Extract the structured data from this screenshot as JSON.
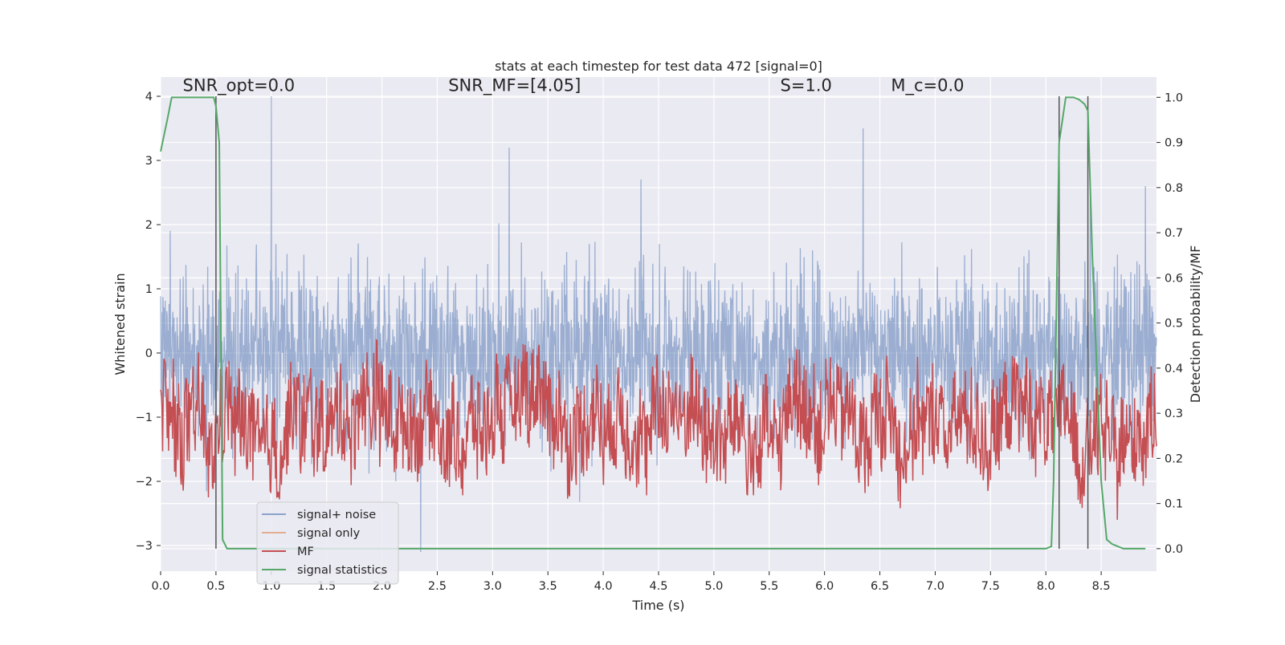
{
  "chart_data": {
    "type": "line",
    "title": "stats at each timestep for test data 472 [signal=0]",
    "xlabel": "Time (s)",
    "ylabel": "Whitened strain",
    "ylabel_right": "Detection probability/MF",
    "xlim": [
      0.0,
      9.0
    ],
    "ylim": [
      -3.4,
      4.3
    ],
    "ylim_right": [
      -0.05,
      1.045
    ],
    "x_ticks": [
      "0.0",
      "0.5",
      "1.0",
      "1.5",
      "2.0",
      "2.5",
      "3.0",
      "3.5",
      "4.0",
      "4.5",
      "5.0",
      "5.5",
      "6.0",
      "6.5",
      "7.0",
      "7.5",
      "8.0",
      "8.5"
    ],
    "x_tick_values": [
      0.0,
      0.5,
      1.0,
      1.5,
      2.0,
      2.5,
      3.0,
      3.5,
      4.0,
      4.5,
      5.0,
      5.5,
      6.0,
      6.5,
      7.0,
      7.5,
      8.0,
      8.5
    ],
    "y_ticks": [
      "−3",
      "−2",
      "−1",
      "0",
      "1",
      "2",
      "3",
      "4"
    ],
    "y_tick_values": [
      -3,
      -2,
      -1,
      0,
      1,
      2,
      3,
      4
    ],
    "y_ticks_right": [
      "0.0",
      "0.1",
      "0.2",
      "0.3",
      "0.4",
      "0.5",
      "0.6",
      "0.7",
      "0.8",
      "0.9",
      "1.0"
    ],
    "y_tick_values_right": [
      0.0,
      0.1,
      0.2,
      0.3,
      0.4,
      0.5,
      0.6,
      0.7,
      0.8,
      0.9,
      1.0
    ],
    "grid": true,
    "legend_position": "lower-left",
    "annotations": [
      {
        "text": "SNR_opt=0.0",
        "x": 0.2,
        "y": 4.08
      },
      {
        "text": "SNR_MF=[4.05]",
        "x": 2.6,
        "y": 4.08
      },
      {
        "text": "S=1.0",
        "x": 5.6,
        "y": 4.08
      },
      {
        "text": "M_c=0.0",
        "x": 6.6,
        "y": 4.08
      }
    ],
    "vertical_lines": [
      {
        "x": 0.5,
        "y_top": 4.0,
        "y_bottom": -3.05
      },
      {
        "x": 8.12,
        "y_top": 4.0,
        "y_bottom": -3.05
      },
      {
        "x": 8.38,
        "y_top": 4.0,
        "y_bottom": -3.05
      }
    ],
    "series": [
      {
        "name": "signal+ noise",
        "color": "#4c72b0",
        "axis": "left",
        "description": "whitened noise, roughly symmetric about 0 with spread about ±1 and spikes to about 4 and -3.1",
        "spikes": [
          {
            "x": 1.0,
            "y": 4.0
          },
          {
            "x": 2.35,
            "y": -3.1
          },
          {
            "x": 3.15,
            "y": 3.2
          },
          {
            "x": 6.35,
            "y": 3.5
          },
          {
            "x": 8.4,
            "y": 2.4
          },
          {
            "x": 8.9,
            "y": 2.6
          }
        ]
      },
      {
        "name": "signal only",
        "color": "#dd8452",
        "axis": "left",
        "values": "zero (no signal)"
      },
      {
        "name": "MF",
        "color": "#c44e52",
        "axis": "right",
        "description": "matched filter output fluctuating between about 0.0 and 0.58 on the right axis"
      },
      {
        "name": "signal statistics",
        "color": "#55a868",
        "axis": "right",
        "x": [
          0.0,
          0.06,
          0.1,
          0.2,
          0.3,
          0.4,
          0.45,
          0.48,
          0.5,
          0.53,
          0.56,
          0.6,
          0.8,
          2.0,
          4.0,
          6.0,
          7.5,
          8.0,
          8.05,
          8.07,
          8.12,
          8.18,
          8.25,
          8.3,
          8.35,
          8.38,
          8.42,
          8.5,
          8.55,
          8.6,
          8.7,
          8.9
        ],
        "values": [
          0.88,
          0.95,
          1.0,
          1.0,
          1.0,
          1.0,
          1.0,
          1.0,
          0.98,
          0.9,
          0.02,
          0.0,
          0.0,
          0.0,
          0.0,
          0.0,
          0.0,
          0.0,
          0.005,
          0.15,
          0.9,
          1.0,
          1.0,
          0.995,
          0.985,
          0.97,
          0.65,
          0.15,
          0.02,
          0.01,
          0.0,
          0.0
        ]
      }
    ]
  }
}
